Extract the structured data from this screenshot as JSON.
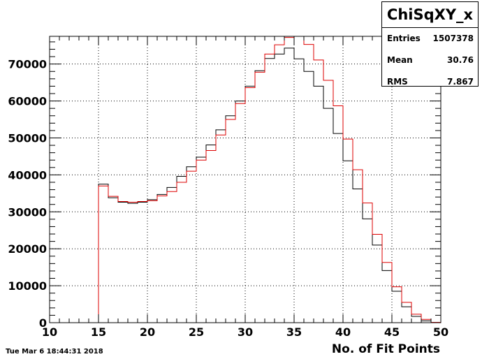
{
  "chart_data": {
    "type": "histogram",
    "title": "ChiSqXY_x",
    "xlabel": "No. of Fit Points",
    "ylabel": "",
    "xlim": [
      10,
      50
    ],
    "ylim": [
      0,
      77500
    ],
    "x_ticks": [
      "10",
      "15",
      "20",
      "25",
      "30",
      "35",
      "40",
      "45",
      "50"
    ],
    "y_ticks": [
      "0",
      "10000",
      "20000",
      "30000",
      "40000",
      "50000",
      "60000",
      "70000"
    ],
    "grid": true,
    "bin_width": 1,
    "bin_edges_start": 10,
    "series": [
      {
        "color": "#000000",
        "values": [
          0,
          0,
          0,
          0,
          0,
          37500,
          33800,
          32600,
          32300,
          32600,
          33300,
          34700,
          36600,
          39600,
          42200,
          44800,
          48100,
          52200,
          56000,
          60000,
          64000,
          68200,
          71500,
          72700,
          74300,
          71400,
          68000,
          64000,
          58000,
          51200,
          43800,
          36200,
          28100,
          21000,
          14100,
          8500,
          4300,
          1700,
          500,
          100
        ]
      },
      {
        "color": "#dd0000",
        "values": [
          0,
          0,
          0,
          0,
          0,
          37000,
          34200,
          32800,
          32600,
          32800,
          33000,
          34300,
          35500,
          38000,
          41000,
          44000,
          46600,
          50800,
          55000,
          59300,
          63600,
          67800,
          72700,
          75200,
          77200,
          77500,
          75300,
          71100,
          65600,
          58700,
          49700,
          41400,
          32400,
          23900,
          16300,
          9700,
          5500,
          2300,
          900,
          100
        ]
      }
    ],
    "stats": {
      "entries_label": "Entries",
      "entries": "1507378",
      "mean_label": "Mean",
      "mean": "30.76",
      "rms_label": "RMS",
      "rms": "7.867"
    }
  },
  "footer": {
    "timestamp": "Tue Mar  6 18:44:31 2018"
  }
}
